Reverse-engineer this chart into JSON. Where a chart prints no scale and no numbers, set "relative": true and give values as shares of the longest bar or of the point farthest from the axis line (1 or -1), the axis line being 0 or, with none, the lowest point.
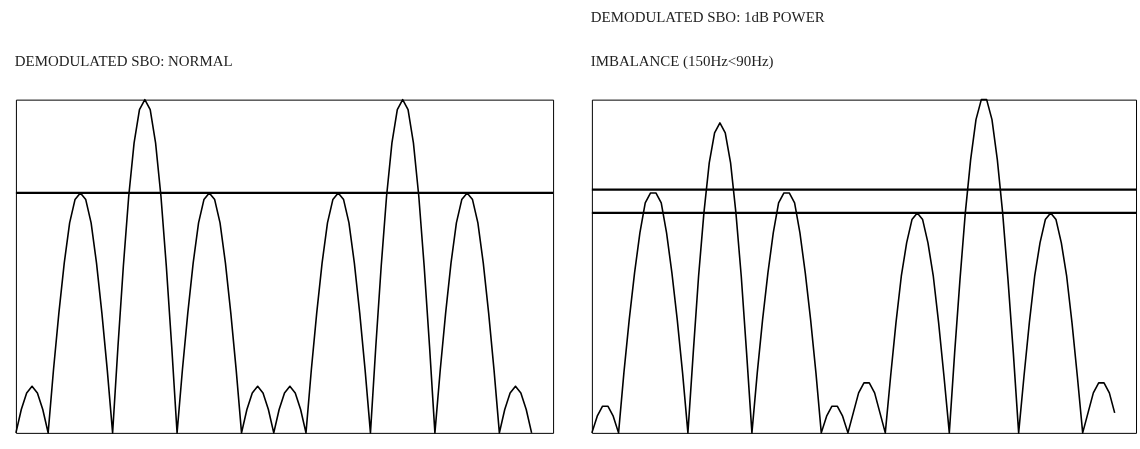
{
  "chart_data": [
    {
      "type": "line",
      "title": "DEMODULATED SBO: NORMAL",
      "relative": true,
      "grid": false,
      "marker": "none",
      "line_style": "solid",
      "categories": [
        null,
        null,
        null,
        null,
        null,
        null,
        null,
        null,
        null,
        null,
        null,
        null,
        null,
        null,
        null,
        null,
        null,
        null,
        null,
        null,
        null,
        null,
        null,
        null,
        null,
        null,
        null,
        null,
        null,
        null,
        null,
        null,
        null,
        null,
        null,
        null,
        null,
        null,
        null,
        null,
        null,
        null,
        null,
        null,
        null,
        null,
        null,
        null,
        null,
        null,
        null,
        null,
        null,
        null,
        null,
        null,
        null,
        null,
        null,
        null,
        null,
        null,
        null,
        null,
        null,
        null,
        null,
        null,
        null,
        null,
        null,
        null,
        null,
        null,
        null,
        null,
        null,
        null,
        null,
        null,
        null,
        null,
        null,
        null,
        null,
        null,
        null,
        null,
        null,
        null,
        null,
        null,
        null,
        null,
        null,
        null,
        null,
        null,
        null,
        null,
        null
      ],
      "series": [
        {
          "color": "#000000",
          "values": [
            0,
            0.07,
            0.12,
            0.14,
            0.12,
            0.07,
            0,
            0.19,
            0.36,
            0.51,
            0.63,
            0.7,
            0.72,
            0.7,
            0.63,
            0.51,
            0.36,
            0.19,
            0,
            0.26,
            0.5,
            0.71,
            0.87,
            0.97,
            1,
            0.97,
            0.87,
            0.71,
            0.5,
            0.26,
            0,
            0.19,
            0.36,
            0.51,
            0.63,
            0.7,
            0.72,
            0.7,
            0.63,
            0.51,
            0.36,
            0.19,
            0,
            0.07,
            0.12,
            0.14,
            0.12,
            0.07,
            0,
            0.07,
            0.12,
            0.14,
            0.12,
            0.07,
            0,
            0.19,
            0.36,
            0.51,
            0.63,
            0.7,
            0.72,
            0.7,
            0.63,
            0.51,
            0.36,
            0.19,
            0,
            0.26,
            0.5,
            0.71,
            0.87,
            0.97,
            1,
            0.97,
            0.87,
            0.71,
            0.5,
            0.26,
            0,
            0.19,
            0.36,
            0.51,
            0.63,
            0.7,
            0.72,
            0.7,
            0.63,
            0.51,
            0.36,
            0.19,
            0,
            0.07,
            0.12,
            0.14,
            0.12,
            0.07,
            0,
            null,
            null,
            null,
            null
          ]
        }
      ],
      "ref_lines": [
        {
          "axis": "y",
          "value": 0.72,
          "color": "#000000"
        }
      ]
    },
    {
      "type": "line",
      "title": "DEMODULATED SBO: 1dB POWER\nIMBALANCE (150Hz<90Hz)",
      "relative": true,
      "grid": false,
      "marker": "none",
      "line_style": "solid",
      "categories": [
        null,
        null,
        null,
        null,
        null,
        null,
        null,
        null,
        null,
        null,
        null,
        null,
        null,
        null,
        null,
        null,
        null,
        null,
        null,
        null,
        null,
        null,
        null,
        null,
        null,
        null,
        null,
        null,
        null,
        null,
        null,
        null,
        null,
        null,
        null,
        null,
        null,
        null,
        null,
        null,
        null,
        null,
        null,
        null,
        null,
        null,
        null,
        null,
        null,
        null,
        null,
        null,
        null,
        null,
        null,
        null,
        null,
        null,
        null,
        null,
        null,
        null,
        null,
        null,
        null,
        null,
        null,
        null,
        null,
        null,
        null,
        null,
        null,
        null,
        null,
        null,
        null,
        null,
        null,
        null,
        null,
        null,
        null,
        null,
        null,
        null,
        null,
        null,
        null,
        null,
        null,
        null,
        null,
        null,
        null,
        null,
        null,
        null,
        null,
        null,
        null,
        null,
        null
      ],
      "series": [
        {
          "color": "#000000",
          "values": [
            0,
            0.05,
            0.08,
            0.08,
            0.05,
            0,
            0.18,
            0.34,
            0.48,
            0.6,
            0.69,
            0.72,
            0.72,
            0.69,
            0.6,
            0.48,
            0.34,
            0.18,
            0,
            0.24,
            0.47,
            0.66,
            0.81,
            0.9,
            0.93,
            0.9,
            0.81,
            0.66,
            0.47,
            0.24,
            0,
            0.18,
            0.34,
            0.48,
            0.6,
            0.69,
            0.72,
            0.72,
            0.69,
            0.6,
            0.48,
            0.34,
            0.18,
            0,
            0.05,
            0.08,
            0.08,
            0.05,
            0,
            0.06,
            0.12,
            0.15,
            0.15,
            0.12,
            0.06,
            0,
            0.17,
            0.33,
            0.47,
            0.57,
            0.64,
            0.66,
            0.64,
            0.57,
            0.47,
            0.33,
            0.17,
            0,
            0.24,
            0.46,
            0.66,
            0.82,
            0.94,
            1,
            1,
            0.94,
            0.82,
            0.66,
            0.46,
            0.24,
            0,
            0.17,
            0.33,
            0.47,
            0.57,
            0.64,
            0.66,
            0.64,
            0.57,
            0.47,
            0.33,
            0.17,
            0,
            0.06,
            0.12,
            0.15,
            0.15,
            0.12,
            0.06,
            null,
            null,
            null,
            null
          ]
        }
      ],
      "ref_lines": [
        {
          "axis": "y",
          "value": 0.73,
          "color": "#000000"
        },
        {
          "axis": "y",
          "value": 0.66,
          "color": "#000000"
        }
      ]
    }
  ]
}
